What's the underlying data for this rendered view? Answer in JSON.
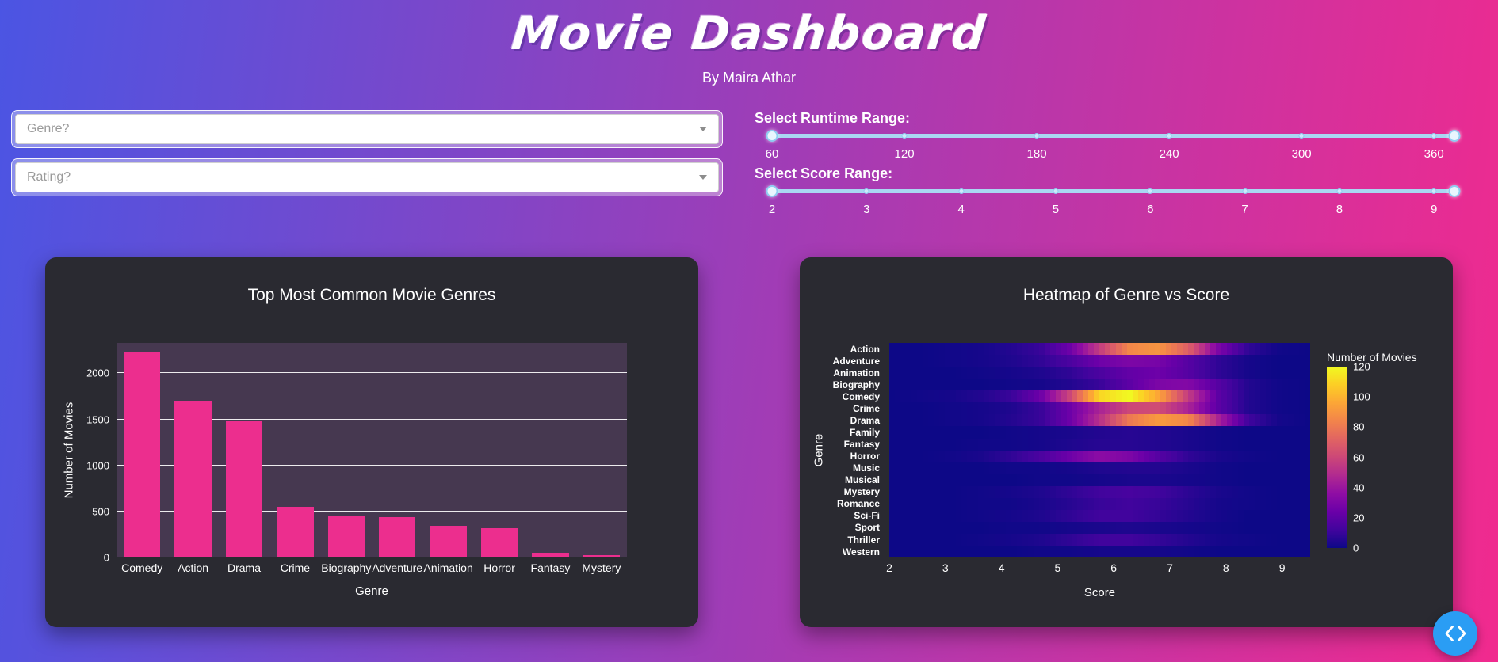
{
  "header": {
    "title": "Movie Dashboard",
    "subtitle": "By Maira Athar"
  },
  "filters": {
    "genre_placeholder": "Genre?",
    "rating_placeholder": "Rating?"
  },
  "sliders": {
    "runtime": {
      "label": "Select Runtime Range:",
      "ticks": [
        "60",
        "120",
        "180",
        "240",
        "300",
        "360"
      ]
    },
    "score": {
      "label": "Select Score Range:",
      "ticks": [
        "2",
        "3",
        "4",
        "5",
        "6",
        "7",
        "8",
        "9"
      ]
    }
  },
  "colors": {
    "background_left": "#4b55e3",
    "background_right": "#f12a8e",
    "card": "#2a2a31",
    "bar": "#ec2e8e",
    "bar_plot_bg": "#463850",
    "slider_track": "#a9d7f2",
    "accent_blue": "#2a9df4"
  },
  "nav": {
    "carousel_icons": [
      "chevron-left",
      "chevron-right"
    ]
  },
  "chart_data": [
    {
      "type": "bar",
      "title": "Top Most Common Movie Genres",
      "xlabel": "Genre",
      "ylabel": "Number of Movies",
      "categories": [
        "Comedy",
        "Action",
        "Drama",
        "Crime",
        "Biography",
        "Adventure",
        "Animation",
        "Horror",
        "Fantasy",
        "Mystery"
      ],
      "values": [
        2230,
        1690,
        1480,
        550,
        445,
        435,
        340,
        320,
        50,
        30
      ],
      "yticks": [
        0,
        500,
        1000,
        1500,
        2000
      ],
      "ylim": [
        0,
        2330
      ],
      "grid": true,
      "legend": "none"
    },
    {
      "type": "heatmap",
      "title": "Heatmap of Genre vs Score",
      "xlabel": "Score",
      "ylabel": "Genre",
      "colorbar_title": "Number of Movies",
      "colorbar_ticks": [
        120,
        100,
        80,
        60,
        40,
        20,
        0
      ],
      "zmax": 120,
      "x_ticks": [
        2,
        3,
        4,
        5,
        6,
        7,
        8,
        9
      ],
      "x_range": [
        2,
        9.5
      ],
      "colormap": "plasma",
      "colormap_colors": [
        "#0d0887",
        "#41049d",
        "#6a00a8",
        "#8f0da4",
        "#b12a90",
        "#cc4778",
        "#e16462",
        "#f2844b",
        "#fca636",
        "#fcce25",
        "#f0f921"
      ],
      "genres": [
        "Action",
        "Adventure",
        "Animation",
        "Biography",
        "Comedy",
        "Crime",
        "Drama",
        "Family",
        "Fantasy",
        "Horror",
        "Music",
        "Musical",
        "Mystery",
        "Romance",
        "Sci-Fi",
        "Sport",
        "Thriller",
        "Western"
      ],
      "score_bins": [
        2.25,
        2.75,
        3.25,
        3.75,
        4.25,
        4.75,
        5.25,
        5.75,
        6.25,
        6.75,
        7.25,
        7.75,
        8.25,
        8.75,
        9.25
      ],
      "matrix": [
        [
          0,
          0,
          1,
          2,
          5,
          10,
          25,
          55,
          85,
          90,
          70,
          30,
          8,
          1,
          0
        ],
        [
          0,
          0,
          1,
          2,
          4,
          8,
          15,
          25,
          30,
          28,
          18,
          8,
          2,
          0,
          0
        ],
        [
          0,
          0,
          0,
          1,
          2,
          4,
          8,
          15,
          22,
          25,
          18,
          8,
          2,
          0,
          0
        ],
        [
          0,
          0,
          0,
          0,
          1,
          2,
          5,
          10,
          20,
          30,
          32,
          18,
          5,
          1,
          0
        ],
        [
          0,
          1,
          2,
          5,
          10,
          25,
          60,
          110,
          120,
          95,
          55,
          20,
          5,
          1,
          0
        ],
        [
          0,
          0,
          1,
          2,
          4,
          10,
          25,
          45,
          60,
          62,
          45,
          20,
          5,
          1,
          0
        ],
        [
          0,
          0,
          1,
          2,
          5,
          10,
          25,
          50,
          80,
          92,
          85,
          45,
          12,
          2,
          0
        ],
        [
          0,
          0,
          0,
          0,
          1,
          2,
          3,
          5,
          6,
          5,
          3,
          1,
          0,
          0,
          0
        ],
        [
          0,
          0,
          0,
          1,
          1,
          2,
          4,
          6,
          6,
          5,
          3,
          1,
          0,
          0,
          0
        ],
        [
          0,
          0,
          1,
          3,
          8,
          15,
          25,
          35,
          30,
          18,
          8,
          3,
          1,
          0,
          0
        ],
        [
          0,
          0,
          0,
          0,
          1,
          1,
          2,
          4,
          5,
          5,
          3,
          1,
          0,
          0,
          0
        ],
        [
          0,
          0,
          0,
          0,
          0,
          1,
          1,
          2,
          3,
          3,
          2,
          1,
          0,
          0,
          0
        ],
        [
          0,
          0,
          0,
          1,
          2,
          4,
          8,
          12,
          14,
          12,
          7,
          3,
          1,
          0,
          0
        ],
        [
          0,
          0,
          0,
          1,
          1,
          3,
          6,
          10,
          12,
          10,
          6,
          2,
          1,
          0,
          0
        ],
        [
          0,
          0,
          0,
          1,
          2,
          4,
          8,
          12,
          12,
          9,
          5,
          2,
          0,
          0,
          0
        ],
        [
          0,
          0,
          0,
          0,
          1,
          1,
          2,
          3,
          4,
          3,
          2,
          1,
          0,
          0,
          0
        ],
        [
          0,
          0,
          0,
          1,
          2,
          4,
          8,
          12,
          12,
          9,
          5,
          2,
          1,
          0,
          0
        ],
        [
          0,
          0,
          0,
          0,
          0,
          1,
          1,
          2,
          2,
          2,
          1,
          0,
          0,
          0,
          0
        ]
      ]
    }
  ]
}
